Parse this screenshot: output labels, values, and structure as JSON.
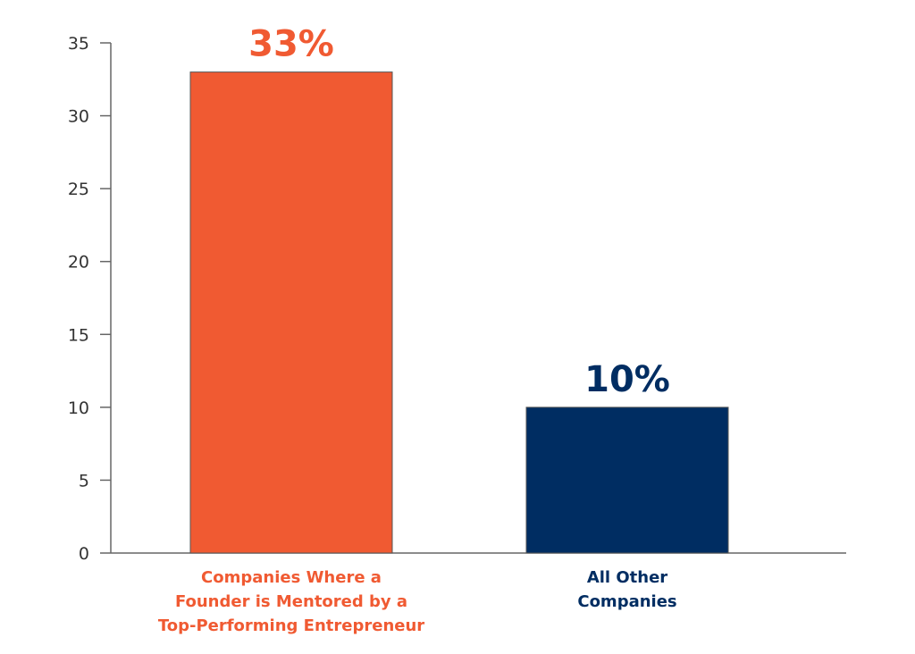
{
  "chart_data": {
    "type": "bar",
    "categories": [
      [
        "Companies Where a",
        "Founder is Mentored by a",
        "Top-Performing Entrepreneur"
      ],
      [
        "All Other",
        "Companies"
      ]
    ],
    "values": [
      33,
      10
    ],
    "data_labels": [
      "33%",
      "10%"
    ],
    "colors": [
      "#f05a32",
      "#002d62"
    ],
    "title": "",
    "xlabel": "",
    "ylabel": "",
    "ylim": [
      0,
      35
    ],
    "yticks": [
      0,
      5,
      10,
      15,
      20,
      25,
      30,
      35
    ],
    "grid": false
  }
}
